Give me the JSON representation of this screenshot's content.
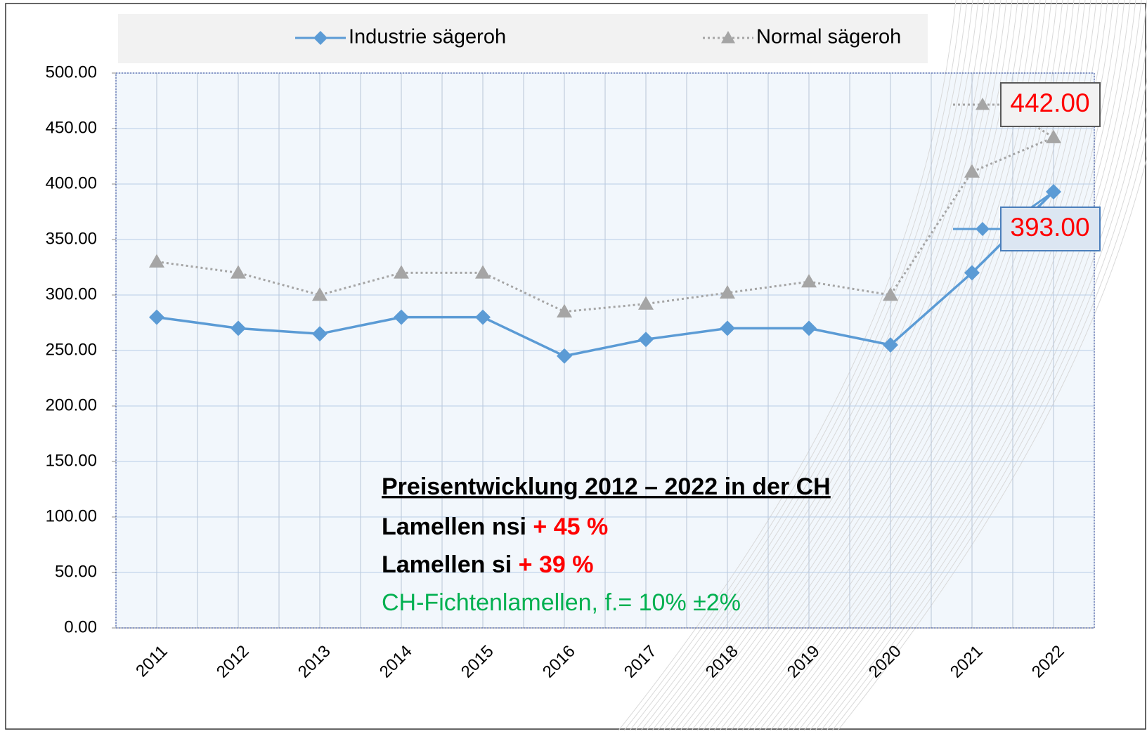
{
  "chart_data": {
    "type": "line",
    "categories": [
      "2011",
      "2012",
      "2013",
      "2014",
      "2015",
      "2016",
      "2017",
      "2018",
      "2019",
      "2020",
      "2021",
      "2022"
    ],
    "series": [
      {
        "name": "Industrie sägeroh",
        "color": "#5b9bd5",
        "marker": "diamond",
        "dash": "solid",
        "values": [
          280,
          270,
          265,
          280,
          280,
          245,
          260,
          270,
          270,
          255,
          320,
          393
        ],
        "value_labels": [
          null,
          null,
          null,
          null,
          null,
          null,
          null,
          null,
          null,
          null,
          null,
          "393.00"
        ]
      },
      {
        "name": "Normal sägeroh",
        "color": "#a5a5a5",
        "marker": "triangle",
        "dash": "dotted",
        "values": [
          330,
          320,
          300,
          320,
          320,
          285,
          292,
          302,
          312,
          300,
          411,
          442
        ],
        "value_labels": [
          null,
          null,
          null,
          null,
          null,
          null,
          null,
          null,
          null,
          null,
          null,
          "442.00"
        ]
      }
    ],
    "ylim": [
      0,
      500
    ],
    "yticks": [
      {
        "value": 0,
        "label": "0.00"
      },
      {
        "value": 50,
        "label": "50.00"
      },
      {
        "value": 100,
        "label": "100.00"
      },
      {
        "value": 150,
        "label": "150.00"
      },
      {
        "value": 200,
        "label": "200.00"
      },
      {
        "value": 250,
        "label": "250.00"
      },
      {
        "value": 300,
        "label": "300.00"
      },
      {
        "value": 350,
        "label": "350.00"
      },
      {
        "value": 400,
        "label": "400.00"
      },
      {
        "value": 450,
        "label": "450.00"
      },
      {
        "value": 500,
        "label": "500.00"
      }
    ],
    "grid": true,
    "legend": "top",
    "annotations": [
      {
        "text": "Preisentwicklung 2012 – 2022 in der CH"
      },
      {
        "text": "Lamellen nsi",
        "highlight": "+ 45 %"
      },
      {
        "text": "Lamellen si",
        "highlight": "+ 39 %"
      },
      {
        "text": "CH-Fichtenlamellen, f.= 10% ±2%"
      }
    ]
  }
}
